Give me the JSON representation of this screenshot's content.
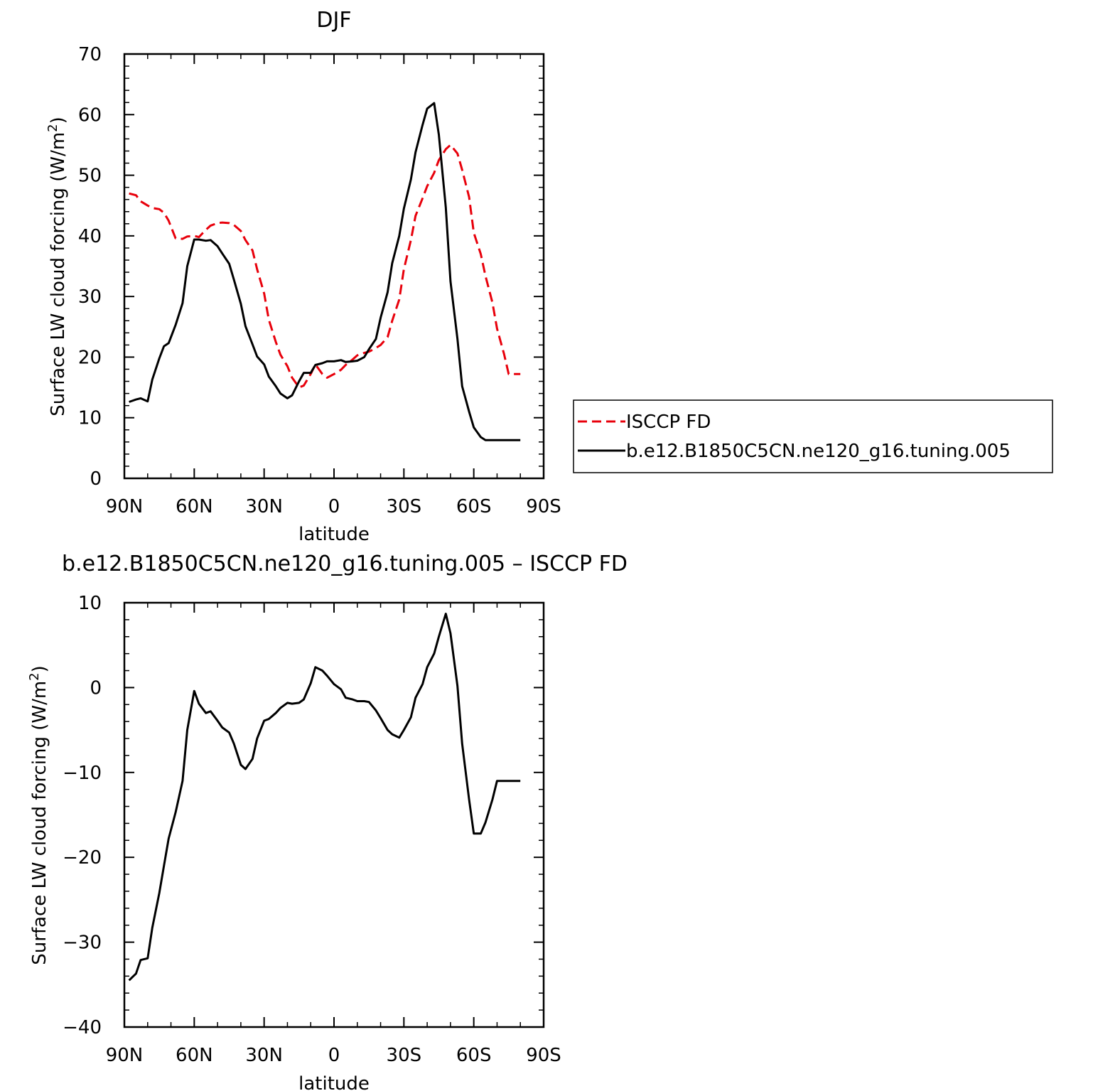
{
  "colors": {
    "model": "#000000",
    "obs": "#e8000b",
    "frame": "#000000",
    "background": "#ffffff"
  },
  "chart_data": [
    {
      "type": "line",
      "title": "DJF",
      "xlabel": "latitude",
      "ylabel": "Surface LW cloud forcing (W/m",
      "ylabel_sup": "2",
      "ylabel_close": ")",
      "xlim": [
        90,
        -90
      ],
      "ylim": [
        0,
        70
      ],
      "x_tick_values": [
        90,
        60,
        30,
        0,
        -30,
        -60,
        -90
      ],
      "x_tick_labels": [
        "90N",
        "60N",
        "30N",
        "0",
        "30S",
        "60S",
        "90S"
      ],
      "y_ticks": [
        0,
        10,
        20,
        30,
        40,
        50,
        60,
        70
      ],
      "grid": false,
      "legend_position": "right",
      "series": [
        {
          "name": "ISCCP FD",
          "style": "dashed",
          "color": "#e8000b",
          "x": [
            88,
            85,
            83,
            80,
            78,
            75,
            73,
            71,
            68,
            65,
            63,
            60,
            58,
            55,
            53,
            50,
            48,
            45,
            43,
            40,
            38,
            35,
            33,
            30,
            28,
            25,
            23,
            20,
            18,
            15,
            13,
            10,
            8,
            5,
            3,
            0,
            -3,
            -5,
            -8,
            -10,
            -13,
            -15,
            -18,
            -20,
            -23,
            -25,
            -28,
            -30,
            -33,
            -35,
            -38,
            -40,
            -43,
            -45,
            -48,
            -50,
            -53,
            -55,
            -58,
            -60,
            -63,
            -65,
            -68,
            -70,
            -73,
            -75,
            -78,
            -80,
            -83,
            -85,
            -88
          ],
          "y": [
            47,
            46.7,
            45.7,
            45,
            44.6,
            44.4,
            43.8,
            42.5,
            39.6,
            39.5,
            39.9,
            40,
            39.8,
            41,
            41.7,
            42.1,
            42.2,
            42.1,
            41.8,
            40.8,
            39.3,
            37.6,
            34.5,
            30.5,
            26.2,
            22.5,
            20.4,
            18.5,
            16.6,
            15,
            15.3,
            17.2,
            18.8,
            17.2,
            16.6,
            17.2,
            17.9,
            18.7,
            19.6,
            20.3,
            20.7,
            20.9,
            21.5,
            22,
            23.3,
            26,
            29.5,
            34.5,
            39.3,
            43.3,
            46.2,
            48.2,
            50.4,
            52.5,
            54.3,
            55,
            53.6,
            50.9,
            46.4,
            40.5,
            37,
            33.4,
            29,
            24.7,
            20.5,
            17.2,
            17.2,
            17.2,
            17.2,
            17.2,
            17.2
          ]
        },
        {
          "name": "b.e12.B1850C5CN.ne120_g16.tuning.005",
          "style": "solid",
          "color": "#000000",
          "x": [
            88,
            85,
            83,
            80,
            78,
            75,
            73,
            71,
            68,
            65,
            63,
            60,
            58,
            55,
            53,
            50,
            48,
            45,
            43,
            40,
            38,
            35,
            33,
            30,
            28,
            25,
            23,
            20,
            18,
            15,
            13,
            10,
            8,
            5,
            3,
            0,
            -3,
            -5,
            -8,
            -10,
            -13,
            -15,
            -18,
            -20,
            -23,
            -25,
            -28,
            -30,
            -33,
            -35,
            -38,
            -40,
            -43,
            -45,
            -48,
            -50,
            -53,
            -55,
            -58,
            -60,
            -63,
            -65,
            -68,
            -70,
            -73,
            -75,
            -78,
            -80,
            -83,
            -85,
            -88
          ],
          "y": [
            12.6,
            13,
            13.2,
            12.7,
            16.3,
            19.8,
            21.8,
            22.3,
            25.3,
            28.9,
            35,
            39.4,
            39.4,
            39.2,
            39.3,
            38.3,
            37.1,
            35.4,
            32.8,
            28.8,
            25.1,
            22.1,
            20.1,
            18.8,
            16.8,
            15.2,
            14,
            13.2,
            13.7,
            16,
            17.4,
            17.4,
            18.7,
            19,
            19.3,
            19.3,
            19.5,
            19.2,
            19.3,
            19.4,
            20,
            21.3,
            23,
            26.5,
            30.7,
            35.5,
            40,
            44.5,
            49.3,
            53.8,
            58.3,
            61,
            61.9,
            56.7,
            44.7,
            32.5,
            23,
            15.2,
            11,
            8.4,
            6.8,
            6.3,
            6.3,
            6.3,
            6.3,
            6.3,
            6.3,
            6.3,
            6.3,
            6.3,
            6.3
          ]
        }
      ]
    },
    {
      "type": "line",
      "title": "b.e12.B1850C5CN.ne120_g16.tuning.005 – ISCCP FD",
      "xlabel": "latitude",
      "ylabel": "Surface LW cloud forcing (W/m",
      "ylabel_sup": "2",
      "ylabel_close": ")",
      "xlim": [
        90,
        -90
      ],
      "ylim": [
        -40,
        10
      ],
      "x_tick_values": [
        90,
        60,
        30,
        0,
        -30,
        -60,
        -90
      ],
      "x_tick_labels": [
        "90N",
        "60N",
        "30N",
        "0",
        "30S",
        "60S",
        "90S"
      ],
      "y_tick_values": [
        -40,
        -30,
        -20,
        -10,
        0,
        10
      ],
      "y_tick_labels": [
        "−40",
        "−30",
        "−20",
        "−10",
        "0",
        "10"
      ],
      "grid": false,
      "series": [
        {
          "style": "solid",
          "color": "#000000",
          "x": [
            88,
            85,
            83,
            80,
            78,
            75,
            73,
            71,
            68,
            65,
            63,
            60,
            58,
            55,
            53,
            50,
            48,
            45,
            43,
            40,
            38,
            35,
            33,
            30,
            28,
            25,
            23,
            20,
            18,
            15,
            13,
            10,
            8,
            5,
            3,
            0,
            -3,
            -5,
            -8,
            -10,
            -13,
            -15,
            -18,
            -20,
            -23,
            -25,
            -28,
            -30,
            -33,
            -35,
            -38,
            -40,
            -43,
            -45,
            -48,
            -50,
            -53,
            -55,
            -58,
            -60,
            -63,
            -65,
            -68,
            -70,
            -73,
            -75,
            -78,
            -80,
            -83,
            -85,
            -88
          ],
          "y": [
            -34.5,
            -33.7,
            -32.1,
            -31.9,
            -28.3,
            -24.2,
            -21,
            -17.8,
            -14.7,
            -11,
            -5,
            -0.4,
            -1.9,
            -3,
            -2.8,
            -3.9,
            -4.7,
            -5.3,
            -6.6,
            -9.1,
            -9.6,
            -8.4,
            -6,
            -3.9,
            -3.7,
            -3,
            -2.4,
            -1.8,
            -1.9,
            -1.8,
            -1.4,
            0.5,
            2.4,
            2,
            1.4,
            0.4,
            -0.2,
            -1.2,
            -1.4,
            -1.6,
            -1.6,
            -1.7,
            -2.7,
            -3.6,
            -5,
            -5.5,
            -5.9,
            -5,
            -3.5,
            -1.2,
            0.4,
            2.4,
            4,
            6,
            8.7,
            6.4,
            0.2,
            -6.6,
            -13.2,
            -17.2,
            -17.2,
            -15.9,
            -13.2,
            -11,
            -11,
            -11,
            -11,
            -11,
            -11,
            -11,
            -11
          ]
        }
      ]
    }
  ]
}
